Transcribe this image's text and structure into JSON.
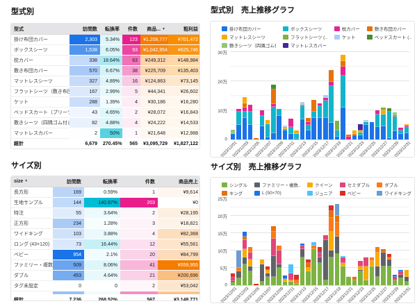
{
  "heat_palette": {
    "blue": "#1a73e8",
    "teal": "#00bcd4",
    "pink": "#e91e8c",
    "orange": "#f57c00",
    "amber": "#fb8c00"
  },
  "type_section": {
    "title": "型式別",
    "table": {
      "columns": [
        {
          "label": "型式",
          "align": "left"
        },
        {
          "label": "訪問数",
          "heat": "blue"
        },
        {
          "label": "転換率",
          "heat": "teal",
          "scale_max": 90
        },
        {
          "label": "件数",
          "heat": "pink"
        },
        {
          "label": "商品...",
          "heat": "orange",
          "sort": "▼"
        },
        {
          "label": "粗利益",
          "heat": "amber"
        }
      ],
      "rows": [
        [
          "掛け布団カバー",
          "2,303",
          "5.34%",
          "123",
          "¥1,208,777",
          "¥701,472"
        ],
        [
          "ボックスシーツ",
          "1,538",
          "6.05%",
          "93",
          "¥1,042,954",
          "¥625,746"
        ],
        [
          "枕カバー",
          "338",
          "18.64%",
          "63",
          "¥249,312",
          "¥148,984"
        ],
        [
          "敷き布団カバー",
          "570",
          "6.67%",
          "38",
          "¥225,709",
          "¥135,403"
        ],
        [
          "マットレスシーツ",
          "327",
          "4.89%",
          "16",
          "¥124,863",
          "¥73,145"
        ],
        [
          "フラットシーツ（敷き布団..",
          "167",
          "2.99%",
          "5",
          "¥44,341",
          "¥26,602"
        ],
        [
          "ケット",
          "288",
          "1.39%",
          "4",
          "¥30,186",
          "¥16,280"
        ],
        [
          "ベッドスカート（プリーツ）",
          "43",
          "4.65%",
          "2",
          "¥28,072",
          "¥16,843"
        ],
        [
          "敷きシーツ（四隅ゴム付き..",
          "82",
          "4.88%",
          "4",
          "¥24,222",
          "¥14,533"
        ],
        [
          "マットレスカバー",
          "2",
          "50%",
          "1",
          "¥21,648",
          "¥12,988"
        ]
      ],
      "total": [
        "総計",
        "6,679",
        "270.45%",
        "565",
        "¥3,095,729",
        "¥1,827,122"
      ]
    }
  },
  "size_section": {
    "title": "サイズ別",
    "table": {
      "columns": [
        {
          "label": "size",
          "align": "left",
          "sort": "▼"
        },
        {
          "label": "訪問数",
          "heat": "blue"
        },
        {
          "label": "転換率",
          "heat": "teal"
        },
        {
          "label": "件数",
          "heat": "pink"
        },
        {
          "label": "商品売上",
          "heat": "orange"
        }
      ],
      "rows": [
        [
          "長方形",
          "169",
          "0.59%",
          "1",
          "¥9,614"
        ],
        [
          "生地サンプル",
          "144",
          "140.97%",
          "203",
          "¥0"
        ],
        [
          "特注",
          "55",
          "3.64%",
          "2",
          "¥28,195"
        ],
        [
          "正方形",
          "234",
          "1.28%",
          "3",
          "¥18,821"
        ],
        [
          "ワイドキング",
          "103",
          "3.88%",
          "4",
          "¥82,368"
        ],
        [
          "ロング (43×120)",
          "73",
          "16.44%",
          "12",
          "¥55,561"
        ],
        [
          "ベビー",
          "954",
          "2.1%",
          "20",
          "¥84,799"
        ],
        [
          "ファミリー・複数連結",
          "509",
          "8.06%",
          "41",
          "¥559,955"
        ],
        [
          "ダブル",
          "453",
          "4.64%",
          "21",
          "¥200,696"
        ],
        [
          "タグ未設定",
          "0",
          "0",
          "2",
          "¥53,042"
        ]
      ],
      "partial_row": true,
      "total": [
        "総計",
        "7,236",
        "268.52%",
        "567",
        "¥3,148,771"
      ]
    }
  },
  "type_chart": {
    "title": "型式別　売上推移グラフ",
    "legend_cols": 4,
    "unit": "万円",
    "y_axis": {
      "max": 30,
      "minor_step": 5,
      "label_step": 10,
      "tick_labels": [
        "0",
        "10万",
        "20万",
        "30万"
      ]
    },
    "x_labels": [
      "2023/12/01",
      "2023/12/03",
      "2023/12/05",
      "2023/12/07",
      "2023/12/09",
      "2023/12/11",
      "2023/12/13",
      "2023/12/15",
      "2023/12/17",
      "2023/12/19",
      "2023/12/21",
      "2023/12/23",
      "2023/12/25",
      "2023/12/27",
      "2023/12/29",
      "2023/12/31"
    ],
    "series": [
      {
        "name": "掛け布団カバー",
        "color": "#1a73e8",
        "values": [
          1.8,
          5,
          7.5,
          5,
          0,
          4.5,
          0.7,
          2.2,
          8,
          3,
          2,
          0.3,
          7,
          3,
          7.5,
          7.5,
          7.5,
          5.8,
          1,
          11,
          0,
          1.5,
          1.5,
          5,
          6,
          4.3,
          4.5,
          0.5,
          2.8,
          2,
          2.2
        ]
      },
      {
        "name": "ボックスシーツ",
        "color": "#12b5cb",
        "values": [
          0,
          4.5,
          2,
          4.5,
          0,
          3.5,
          4.5,
          9,
          2.5,
          0.5,
          2.2,
          1.5,
          4.5,
          2,
          2,
          4,
          5.8,
          12.5,
          2,
          11,
          0,
          0,
          1,
          1,
          0,
          4.3,
          4,
          9,
          5,
          1,
          2
        ]
      },
      {
        "name": "枕カバー",
        "color": "#e52592",
        "values": [
          0,
          1,
          1.5,
          2.5,
          0,
          2,
          0,
          1,
          0,
          0,
          3,
          0,
          0,
          1,
          0,
          1,
          1,
          1.5,
          0,
          3,
          1,
          0,
          0,
          0,
          0,
          1.5,
          0,
          0,
          0,
          1,
          0.5
        ]
      },
      {
        "name": "敷き布団カバー",
        "color": "#e8710a",
        "values": [
          0,
          0,
          1.5,
          0,
          0.5,
          0,
          0,
          5,
          0,
          0,
          0,
          0,
          0.5,
          1.5,
          4,
          0,
          0,
          4,
          0,
          2,
          0.7,
          0.5,
          0,
          0,
          0,
          0,
          0,
          0,
          0.5,
          0,
          0
        ]
      },
      {
        "name": "マットレスシーツ",
        "color": "#f9ab00",
        "values": [
          0,
          0,
          2,
          0,
          0,
          0,
          1.5,
          0,
          0,
          0.7,
          0,
          1.2,
          0,
          0,
          0,
          0,
          0,
          0,
          0,
          2,
          0,
          1,
          0.5,
          0,
          0,
          0,
          1.5,
          0,
          0,
          0,
          0.5
        ]
      },
      {
        "name": "フラットシーツ (..",
        "color": "#7cb342",
        "values": [
          0,
          0,
          0,
          0,
          0,
          0,
          0,
          0,
          0,
          0,
          0,
          0,
          0,
          0,
          0,
          0,
          0,
          0,
          3.5,
          0,
          0,
          0,
          0,
          0,
          0,
          0,
          0.9,
          0,
          0,
          0,
          0
        ]
      },
      {
        "name": "ケット",
        "color": "#aecbfa",
        "values": [
          0,
          0,
          0,
          0,
          0,
          0,
          0,
          0,
          0,
          0.5,
          0,
          0,
          0.8,
          0,
          0,
          0,
          1,
          0,
          0,
          0,
          0,
          0,
          0,
          0.7,
          0,
          0,
          0,
          0,
          0,
          0,
          0
        ]
      },
      {
        "name": "ベッドスカート (..",
        "color": "#4c8c2b",
        "values": [
          0,
          0,
          0,
          0,
          0,
          0,
          0,
          1.5,
          0,
          0,
          0,
          0,
          0,
          0,
          0,
          0,
          0,
          0,
          0,
          0,
          0,
          0,
          0,
          0,
          0,
          0,
          0,
          1.3,
          0,
          0,
          0
        ]
      },
      {
        "name": "敷きシーツ（四隅ゴム付きシーツ）",
        "color": "#93c47d",
        "values": [
          1.5,
          0,
          0,
          0,
          0,
          0,
          0,
          0,
          0,
          0,
          0,
          0,
          0,
          0,
          0,
          0,
          0,
          0,
          0,
          0,
          0,
          0,
          0,
          0,
          0,
          0,
          0,
          0,
          0.9,
          0,
          0
        ]
      },
      {
        "name": "マットレスカバー",
        "color": "#4527a0",
        "values": [
          0,
          0,
          0,
          0,
          0,
          0,
          0,
          0,
          0,
          0,
          0,
          0,
          0,
          0,
          0,
          0,
          0,
          0,
          0,
          0,
          0,
          0,
          2.2,
          0,
          0,
          0,
          0,
          0,
          0,
          0,
          0
        ]
      }
    ]
  },
  "size_chart": {
    "title": "サイズ別　売上推移グラフ",
    "legend_cols": 5,
    "unit": "万円",
    "y_axis": {
      "max": 25,
      "minor_step": 2.5,
      "label_step": 5,
      "tick_labels": [
        "0",
        "5万",
        "10万",
        "15万",
        "20万",
        "25万"
      ]
    },
    "x_labels": [
      "2023/12/01",
      "2023/12/03",
      "2023/12/05",
      "2023/12/07",
      "2023/12/09",
      "2023/12/11",
      "2023/12/13",
      "2023/12/15",
      "2023/12/17",
      "2023/12/19",
      "2023/12/21",
      "2023/12/23",
      "2023/12/25",
      "2023/12/27",
      "2023/12/29",
      "2023/12/31"
    ],
    "series": [
      {
        "name": "シングル",
        "color": "#7cb342",
        "values": [
          0.8,
          2,
          6,
          4,
          0,
          1,
          2.5,
          2.5,
          5,
          1,
          1,
          0.5,
          8,
          4,
          10.5,
          6.5,
          1.5,
          8,
          9,
          5.5,
          2.5,
          1.5,
          4,
          1.5,
          5.5,
          2.5,
          5.5,
          5.5,
          1.5,
          2,
          1
        ]
      },
      {
        "name": "ファミリー・複数..",
        "color": "#5f6368",
        "values": [
          0.5,
          2,
          2,
          1.5,
          0,
          5,
          1,
          6,
          1,
          0,
          0,
          0,
          2.5,
          0,
          0,
          1.5,
          11.5,
          2,
          5,
          0,
          0,
          0,
          0.5,
          0,
          0,
          3,
          4,
          2,
          0,
          1,
          1.5
        ]
      },
      {
        "name": "クイーン",
        "color": "#f9ab00",
        "values": [
          0,
          0,
          2.5,
          2,
          0,
          1.5,
          1,
          0,
          0,
          0.8,
          0.5,
          0,
          0,
          1,
          0,
          0,
          0,
          5.5,
          0,
          1,
          0,
          0,
          1,
          4,
          1.5,
          4,
          0,
          0,
          0,
          0,
          2
        ]
      },
      {
        "name": "セミダブル",
        "color": "#e0457b",
        "values": [
          1,
          0,
          2.5,
          2,
          0,
          0,
          0,
          5,
          4,
          0,
          2,
          0,
          1,
          0,
          0,
          1,
          1.5,
          0,
          0,
          1.5,
          0,
          0,
          1.5,
          2.5,
          0,
          0,
          0,
          0,
          1,
          1,
          0
        ]
      },
      {
        "name": "ダブル",
        "color": "#fa7b17",
        "values": [
          0,
          1,
          0,
          1.5,
          0,
          0,
          0,
          2,
          1.5,
          0,
          0,
          1,
          0,
          0,
          1,
          0,
          0,
          4,
          4,
          0,
          0,
          0,
          0,
          0,
          1,
          1.5,
          0,
          0.5,
          0,
          0,
          0
        ]
      },
      {
        "name": "キング",
        "color": "#e8710a",
        "values": [
          0,
          0,
          1,
          0,
          0,
          0,
          0,
          1.5,
          0,
          0,
          0,
          0,
          0,
          1.5,
          0,
          0,
          0,
          2,
          2,
          0,
          0,
          1,
          0,
          0,
          0,
          0,
          1,
          0,
          0,
          0,
          0
        ]
      },
      {
        "name": "L (50×70)",
        "color": "#1a73e8",
        "values": [
          0,
          0,
          1.5,
          0,
          0,
          0,
          0,
          0,
          0,
          1,
          0,
          0,
          0.5,
          0,
          0,
          0.5,
          0,
          0,
          0,
          0,
          0,
          0,
          0,
          0,
          0,
          0,
          0,
          0,
          0.5,
          0.5,
          0
        ]
      },
      {
        "name": "ジュニア",
        "color": "#4fc3f7",
        "values": [
          0,
          0,
          0,
          0,
          0,
          0,
          0,
          0,
          0,
          0,
          2.5,
          0,
          0,
          0,
          1,
          0,
          0,
          0,
          0,
          0.5,
          0,
          0,
          0,
          0,
          0,
          0,
          0,
          0,
          0,
          0,
          0
        ]
      },
      {
        "name": "ベビー",
        "color": "#d93025",
        "values": [
          1.2,
          0,
          0,
          0,
          0.5,
          0,
          1,
          0,
          0,
          0,
          0,
          1.5,
          0,
          1,
          0,
          1.5,
          0,
          1.5,
          0,
          0,
          0,
          0,
          0,
          0,
          0,
          0,
          0,
          1,
          0,
          0,
          0
        ]
      },
      {
        "name": "ワイドキング",
        "color": "#6e9bd1",
        "values": [
          0,
          5,
          0,
          0,
          0,
          0,
          0,
          0,
          0,
          0,
          0,
          0,
          0,
          0,
          0,
          0,
          0,
          0,
          3.5,
          0,
          0,
          0,
          0,
          0,
          0,
          0,
          0,
          0,
          0,
          0,
          0
        ]
      }
    ]
  }
}
